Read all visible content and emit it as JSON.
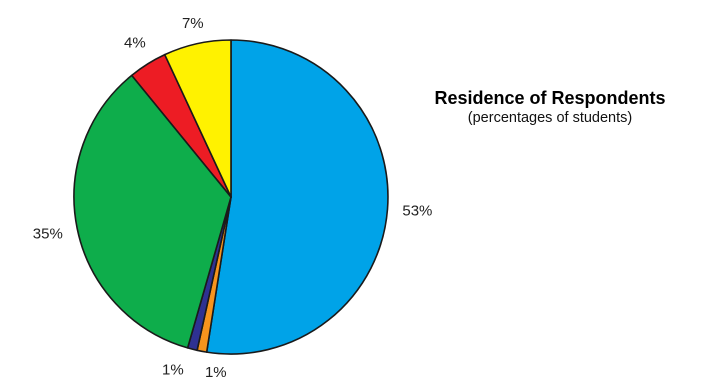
{
  "chart_data": {
    "type": "pie",
    "title": "Residence of Respondents",
    "subtitle": "(percentages of students)",
    "slices": [
      {
        "value": 53,
        "label": "53%",
        "color": "#00a3e8"
      },
      {
        "value": 1,
        "label": "1%",
        "color": "#f7941d"
      },
      {
        "value": 1,
        "label": "1%",
        "color": "#2e3192"
      },
      {
        "value": 35,
        "label": "35%",
        "color": "#0ead4b"
      },
      {
        "value": 4,
        "label": "4%",
        "color": "#ed1c24"
      },
      {
        "value": 7,
        "label": "7%",
        "color": "#fff200"
      }
    ],
    "start": "12 o'clock",
    "direction": "clockwise"
  }
}
